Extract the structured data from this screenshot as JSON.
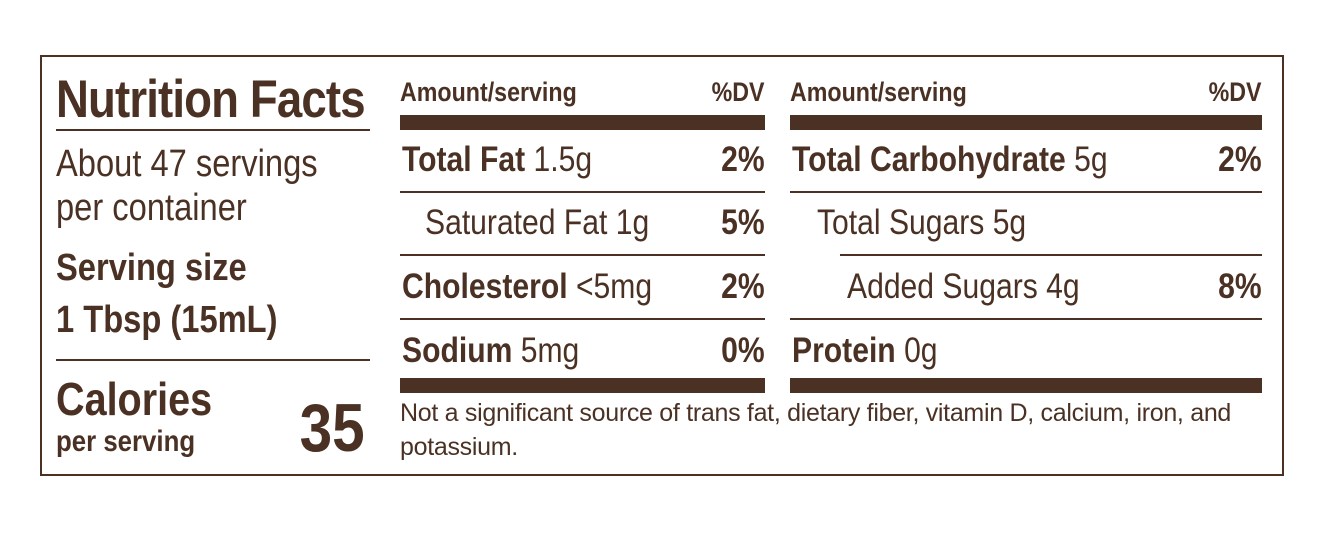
{
  "header": {
    "title": "Nutrition Facts",
    "servings": "About 47 servings per container",
    "serving_size_label": "Serving size",
    "serving_size": "1 Tbsp (15mL)",
    "calories_label": "Calories",
    "calories_sublabel": "per serving",
    "calories": "35"
  },
  "left": {
    "amount_header": "Amount/serving",
    "dv_header": "%DV",
    "rows": [
      {
        "name": "Total Fat",
        "amount": "1.5g",
        "dv": "2%"
      },
      {
        "name": "Saturated Fat",
        "amount": "1g",
        "dv": "5%"
      },
      {
        "name": "Cholesterol",
        "amount": "<5mg",
        "dv": "2%"
      },
      {
        "name": "Sodium",
        "amount": "5mg",
        "dv": "0%"
      }
    ]
  },
  "right": {
    "amount_header": "Amount/serving",
    "dv_header": "%DV",
    "rows": [
      {
        "name": "Total Carbohydrate",
        "amount": "5g",
        "dv": "2%"
      },
      {
        "name": "Total Sugars",
        "amount": "5g"
      },
      {
        "name": "Added Sugars",
        "amount": "4g",
        "dv": "8%"
      },
      {
        "name": "Protein",
        "amount": "0g"
      }
    ]
  },
  "footnote": "Not a significant source of trans fat, dietary fiber, vitamin D, calcium, iron, and potassium."
}
